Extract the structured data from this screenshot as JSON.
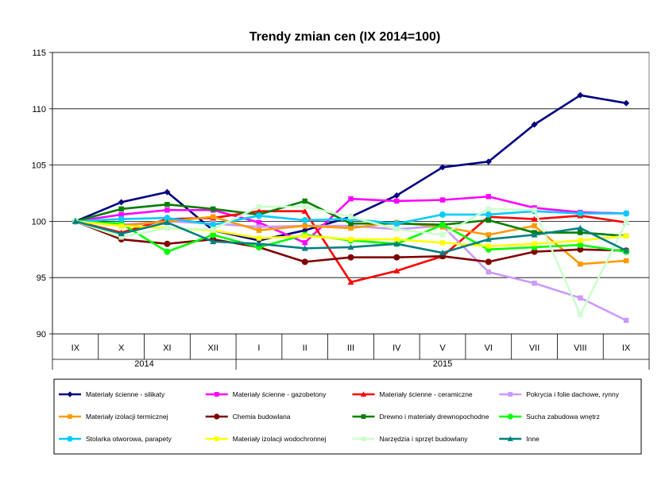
{
  "chart_data": {
    "type": "line",
    "title": "Trendy zmian cen (IX 2014=100)",
    "xlabel": "",
    "ylabel": "",
    "ylim": [
      90,
      115
    ],
    "yticks": [
      90,
      95,
      100,
      105,
      110,
      115
    ],
    "grid": "horizontal",
    "legend_position": "bottom",
    "categories": [
      "IX",
      "X",
      "XI",
      "XII",
      "I",
      "II",
      "III",
      "IV",
      "V",
      "VI",
      "VII",
      "VIII",
      "IX"
    ],
    "year_groups": [
      {
        "label": "2014",
        "start": 0,
        "end": 3
      },
      {
        "label": "2015",
        "start": 4,
        "end": 12
      }
    ],
    "series": [
      {
        "name": "Materiały ścienne - silikaty",
        "color": "#000080",
        "marker": "diamond",
        "values": [
          100,
          101.7,
          102.6,
          99.2,
          98.3,
          99.2,
          100.4,
          102.3,
          104.8,
          105.3,
          108.6,
          111.2,
          110.5
        ]
      },
      {
        "name": "Materiały ścienne - gazobetony",
        "color": "#FF00FF",
        "marker": "square",
        "values": [
          100,
          100.6,
          101.0,
          101.0,
          99.9,
          98.1,
          102.0,
          101.8,
          101.9,
          102.2,
          101.2,
          100.8,
          100.7
        ]
      },
      {
        "name": "Materiały ścienne - ceramiczne",
        "color": "#FF0000",
        "marker": "triangle",
        "values": [
          100,
          99.0,
          100.2,
          100.3,
          100.9,
          100.9,
          94.6,
          95.6,
          96.9,
          100.4,
          100.2,
          100.5,
          99.9
        ]
      },
      {
        "name": "Pokrycia i folie dachowe, rynny",
        "color": "#CC99FF",
        "marker": "square",
        "values": [
          100,
          99.7,
          100.0,
          99.8,
          99.5,
          99.6,
          99.6,
          99.3,
          99.6,
          95.5,
          94.5,
          93.2,
          91.2
        ]
      },
      {
        "name": "Materiały izolacji termicznej",
        "color": "#FF9900",
        "marker": "square",
        "values": [
          100,
          99.6,
          100.0,
          100.4,
          99.2,
          99.6,
          99.4,
          99.9,
          99.5,
          98.8,
          99.6,
          96.2,
          96.5
        ]
      },
      {
        "name": "Chemia budowlana",
        "color": "#800000",
        "marker": "circle",
        "values": [
          100,
          98.4,
          98.0,
          98.4,
          97.7,
          96.4,
          96.8,
          96.8,
          96.9,
          96.4,
          97.3,
          97.5,
          97.4
        ]
      },
      {
        "name": "Drewno i materiały drewnopochodne",
        "color": "#008000",
        "marker": "square",
        "values": [
          100,
          101.1,
          101.5,
          101.1,
          100.6,
          101.8,
          99.8,
          99.8,
          99.7,
          100.1,
          99.0,
          99.0,
          98.7
        ]
      },
      {
        "name": "Sucha zabudowa wnętrz",
        "color": "#00FF00",
        "marker": "circle",
        "values": [
          100,
          99.8,
          97.3,
          98.8,
          97.7,
          98.8,
          98.3,
          98.0,
          99.7,
          97.5,
          97.7,
          97.9,
          97.3
        ]
      },
      {
        "name": "Stolarka otworowa, parapety",
        "color": "#00CCFF",
        "marker": "circle",
        "values": [
          100,
          100.2,
          100.3,
          99.7,
          100.5,
          100.1,
          100.2,
          99.8,
          100.6,
          100.6,
          100.9,
          100.7,
          100.7
        ]
      },
      {
        "name": "Materiały izolacji wodochronnej",
        "color": "#FFFF00",
        "marker": "square",
        "values": [
          100,
          99.6,
          99.4,
          99.2,
          98.5,
          98.7,
          98.4,
          98.4,
          98.1,
          97.8,
          98.0,
          98.3,
          98.7
        ]
      },
      {
        "name": "Narzędzia i sprzęt budowlany",
        "color": "#CCFFCC",
        "marker": "square",
        "values": [
          100,
          98.6,
          99.4,
          99.3,
          101.3,
          101.3,
          100.4,
          99.3,
          98.8,
          101.1,
          101.0,
          91.7,
          99.9
        ]
      },
      {
        "name": "Inne",
        "color": "#008080",
        "marker": "triangle",
        "values": [
          100,
          98.9,
          99.9,
          98.2,
          98.0,
          97.6,
          97.7,
          98.0,
          97.2,
          98.4,
          98.8,
          99.4,
          97.4
        ]
      }
    ]
  }
}
